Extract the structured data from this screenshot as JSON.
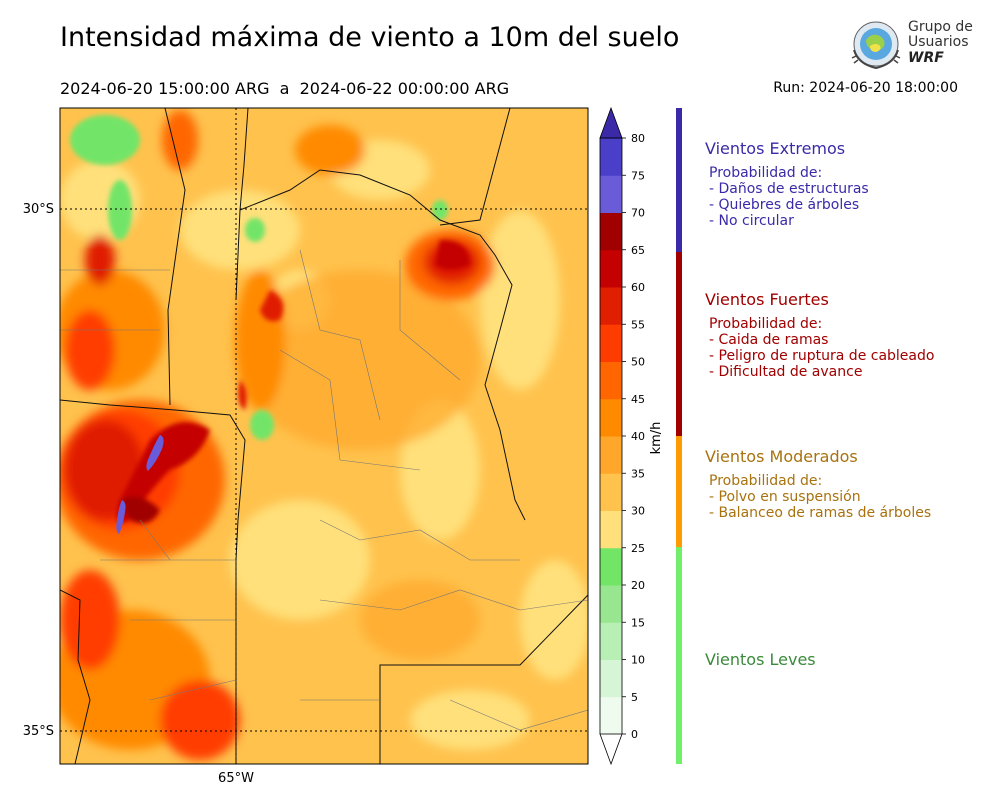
{
  "title": "Intensidad máxima de viento a 10m del suelo",
  "subtitle": "2024-06-20 15:00:00 ARG  a  2024-06-22 00:00:00 ARG",
  "run": "Run: 2024-06-20 18:00:00",
  "logo": {
    "line1": "Grupo de",
    "line2": "Usuarios",
    "line3": "WRF"
  },
  "map": {
    "lat_labels": [
      "30°S",
      "35°S"
    ],
    "lon_label": "65°W",
    "gridline_lats": [
      -30,
      -35
    ],
    "gridline_lon": -65
  },
  "colorbar": {
    "unit": "km/h",
    "ticks": [
      "0",
      "5",
      "10",
      "15",
      "20",
      "25",
      "30",
      "35",
      "40",
      "45",
      "50",
      "55",
      "60",
      "65",
      "70",
      "75",
      "80"
    ],
    "colors": [
      "#f0fbf0",
      "#d6f5d6",
      "#b8efb4",
      "#98e68f",
      "#72e567",
      "#ffe07a",
      "#ffc24d",
      "#ffa72a",
      "#ff8a00",
      "#ff6600",
      "#ff3c00",
      "#e01e00",
      "#c40000",
      "#a00000",
      "#6a5bd8",
      "#4a3fc8",
      "#3a2aa8"
    ]
  },
  "categories": [
    {
      "name": "Vientos Extremos",
      "color": "#3a2aa8",
      "bar_color": "#3a2aa8",
      "desc": [
        "Probabilidad de:",
        "- Daños de estructuras",
        "- Quiebres de árboles",
        "- No circular"
      ]
    },
    {
      "name": "Vientos Fuertes",
      "color": "#a00000",
      "bar_color": "#a00000",
      "desc": [
        "Probabilidad de:",
        "- Caida de ramas",
        "- Peligro de ruptura de cableado",
        "- Dificultad de avance"
      ]
    },
    {
      "name": "Vientos Moderados",
      "color": "#a8720e",
      "bar_color": "#ff9a00",
      "desc": [
        "Probabilidad de:",
        "- Polvo en suspensión",
        "- Balanceo de ramas de árboles"
      ]
    },
    {
      "name": "Vientos Leves",
      "color": "#3a8a3a",
      "bar_color": "#72ef6a",
      "desc": []
    }
  ]
}
